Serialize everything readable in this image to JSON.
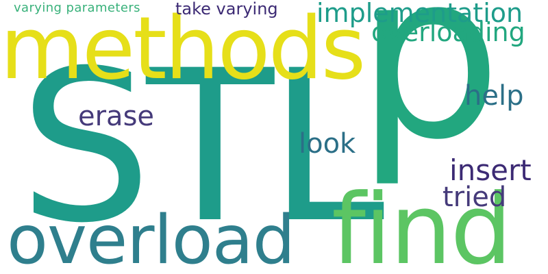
{
  "palette": {
    "background": "#ffffff",
    "teal": "#1e9c8a",
    "green": "#22a77f",
    "yellow": "#e6df19",
    "lime": "#5cc563",
    "purple": "#453a7a",
    "deep_purple": "#3c2a74",
    "steel": "#2f7f8d",
    "blue_teal": "#2b6f87"
  },
  "words": [
    {
      "id": "stl",
      "text": "STL",
      "color": "#1e9c8a"
    },
    {
      "id": "p",
      "text": "p",
      "color": "#22a77f"
    },
    {
      "id": "methods",
      "text": "methods",
      "color": "#e6df19"
    },
    {
      "id": "find",
      "text": "find",
      "color": "#5cc563"
    },
    {
      "id": "overload",
      "text": "overload",
      "color": "#2f7f8d"
    },
    {
      "id": "implementation",
      "text": "implementation",
      "color": "#1e9c8a"
    },
    {
      "id": "overloading",
      "text": "overloading",
      "color": "#22a77f"
    },
    {
      "id": "take_varying",
      "text": "take varying",
      "color": "#3c2a74"
    },
    {
      "id": "varying_parameters",
      "text": "varying parameters",
      "color": "#38b17a"
    },
    {
      "id": "help",
      "text": "help",
      "color": "#2b6f87"
    },
    {
      "id": "erase",
      "text": "erase",
      "color": "#453a7a"
    },
    {
      "id": "look",
      "text": "look",
      "color": "#2b6f87"
    },
    {
      "id": "insert",
      "text": "insert",
      "color": "#3c2a74"
    },
    {
      "id": "tried",
      "text": "tried",
      "color": "#453a7a"
    }
  ]
}
